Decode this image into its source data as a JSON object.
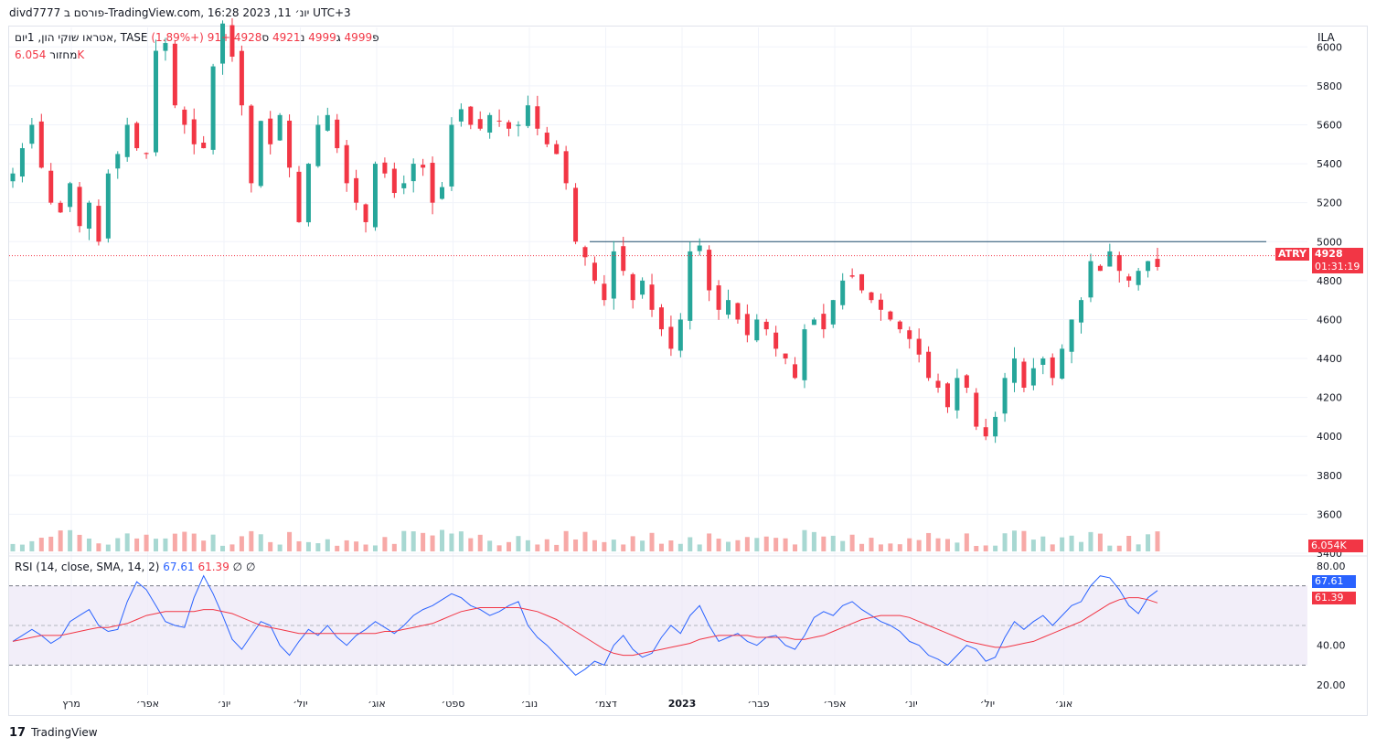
{
  "header": {
    "title": "divd7777 פורסם ב-TradingView.com, יונ׳ 11, 2023 16:28 UTC+3"
  },
  "legend": {
    "symbol": "אטראו שוקי הון, 1יום, TASE",
    "open_label": "פ",
    "open": "4999",
    "high_label": "ג",
    "high": "4999",
    "low_label": "נ",
    "low": "4921",
    "close_label": "ס",
    "close": "4928",
    "change": "+91 (+1.89%)",
    "volume_label": "מחזור",
    "volume": "6.054K"
  },
  "rsi_legend": {
    "label": "RSI (14, close, SMA, 14, 2)",
    "rsi": "67.61",
    "sma": "61.39",
    "extra1": "∅",
    "extra2": "∅"
  },
  "price_axis": {
    "currency": "ILA",
    "last_symbol": "ATRY",
    "last_price": "4928",
    "countdown": "01:31:19",
    "volume_tag": "6.054K"
  },
  "rsi_axis": {
    "ticks": [
      "80.00",
      "40.00",
      "20.00"
    ],
    "rsi_tag": "67.61",
    "sma_tag": "61.39"
  },
  "time_axis": {
    "labels": [
      "מרץ",
      "אפר׳",
      "יונ׳",
      "יול׳",
      "אוג׳",
      "ספט׳",
      "נוב׳",
      "דצמ׳",
      "2023",
      "פבר׳",
      "אפר׳",
      "יונ׳",
      "יול׳",
      "אוג׳"
    ]
  },
  "footer": {
    "brand": "TradingView",
    "logo": "17"
  },
  "colors": {
    "up": "#26a69a",
    "down": "#f23645",
    "rsi": "#2962ff",
    "sma": "#f23645",
    "resistance": "#1e4d6b"
  },
  "chart_data": [
    {
      "type": "candlestick",
      "title": "",
      "ylabel": "ILA",
      "ylim": [
        3400,
        6100
      ],
      "yticks": [
        6000,
        5800,
        5600,
        5400,
        5200,
        5000,
        4800,
        4600,
        4400,
        4200,
        4000,
        3800,
        3600,
        3400
      ],
      "x_labels": [
        "מרץ",
        "אפר׳",
        "יונ׳",
        "יול׳",
        "אוג׳",
        "ספט׳",
        "נוב׳",
        "דצמ׳",
        "2023",
        "פבר׳",
        "אפר׳",
        "יונ׳",
        "יול׳",
        "אוג׳"
      ],
      "resistance_level": 5000,
      "last_price": 4928,
      "path_close": [
        5350,
        5480,
        5600,
        5380,
        5200,
        5150,
        5300,
        5080,
        5200,
        5000,
        5350,
        5450,
        5600,
        5480,
        5450,
        5980,
        6020,
        5700,
        5600,
        5500,
        5480,
        5900,
        6120,
        5950,
        5700,
        5300,
        5620,
        5500,
        5650,
        5380,
        5100,
        5400,
        5600,
        5650,
        5480,
        5300,
        5200,
        5100,
        5400,
        5350,
        5250,
        5300,
        5400,
        5380,
        5200,
        5280,
        5600,
        5680,
        5600,
        5580,
        5650,
        5620,
        5580,
        5600,
        5700,
        5580,
        5500,
        5450,
        5300,
        5000,
        4920,
        4800,
        4700,
        4950,
        4850,
        4700,
        4800,
        4650,
        4550,
        4450,
        4600,
        4950,
        4980,
        4750,
        4650,
        4700,
        4600,
        4520,
        4600,
        4550,
        4450,
        4400,
        4300,
        4550,
        4600,
        4550,
        4700,
        4800,
        4820,
        4750,
        4700,
        4650,
        4600,
        4550,
        4500,
        4420,
        4300,
        4250,
        4150,
        4300,
        4250,
        4050,
        4000,
        4100,
        4300,
        4400,
        4250,
        4350,
        4400,
        4300,
        4450,
        4600,
        4700,
        4900,
        4850,
        4950,
        4850,
        4800,
        4850,
        4900,
        4870
      ]
    },
    {
      "type": "bar",
      "title": "מחזור",
      "last_value": "6.054K",
      "note": "volume histogram"
    },
    {
      "type": "line",
      "title": "RSI (14, close, SMA, 14, 2)",
      "ylim": [
        15,
        85
      ],
      "yticks": [
        80,
        40,
        20
      ],
      "bands": [
        70,
        50,
        30
      ],
      "series": [
        {
          "name": "RSI",
          "last": 67.61,
          "values": [
            42,
            45,
            48,
            45,
            41,
            44,
            52,
            55,
            58,
            50,
            47,
            48,
            62,
            72,
            68,
            60,
            52,
            50,
            49,
            64,
            75,
            66,
            55,
            43,
            38,
            45,
            52,
            50,
            40,
            35,
            42,
            48,
            45,
            50,
            44,
            40,
            45,
            48,
            52,
            49,
            46,
            50,
            55,
            58,
            60,
            63,
            66,
            64,
            60,
            58,
            55,
            57,
            60,
            62,
            50,
            44,
            40,
            35,
            30,
            25,
            28,
            32,
            30,
            40,
            45,
            38,
            34,
            36,
            44,
            50,
            46,
            55,
            60,
            50,
            42,
            44,
            46,
            42,
            40,
            44,
            45,
            40,
            38,
            45,
            54,
            57,
            55,
            60,
            62,
            58,
            55,
            52,
            50,
            47,
            42,
            40,
            35,
            33,
            30,
            35,
            40,
            38,
            32,
            34,
            44,
            52,
            48,
            52,
            55,
            50,
            55,
            60,
            62,
            70,
            75,
            74,
            68,
            60,
            56,
            64,
            67.61
          ]
        },
        {
          "name": "SMA",
          "last": 61.39,
          "values": [
            42,
            43,
            44,
            45,
            45,
            45,
            46,
            47,
            48,
            49,
            49,
            50,
            51,
            53,
            55,
            56,
            57,
            57,
            57,
            57,
            58,
            58,
            57,
            56,
            54,
            52,
            50,
            49,
            48,
            47,
            46,
            46,
            46,
            46,
            46,
            46,
            46,
            46,
            46,
            47,
            47,
            48,
            49,
            50,
            51,
            53,
            55,
            57,
            58,
            59,
            59,
            59,
            59,
            59,
            58,
            57,
            55,
            53,
            50,
            47,
            44,
            41,
            38,
            36,
            35,
            35,
            36,
            37,
            38,
            39,
            40,
            41,
            43,
            44,
            45,
            45,
            45,
            45,
            44,
            44,
            44,
            44,
            43,
            43,
            44,
            45,
            47,
            49,
            51,
            53,
            54,
            55,
            55,
            55,
            54,
            52,
            50,
            48,
            46,
            44,
            42,
            41,
            40,
            39,
            39,
            40,
            41,
            42,
            44,
            46,
            48,
            50,
            52,
            55,
            58,
            61,
            63,
            64,
            64,
            63,
            61.39
          ]
        }
      ]
    }
  ]
}
